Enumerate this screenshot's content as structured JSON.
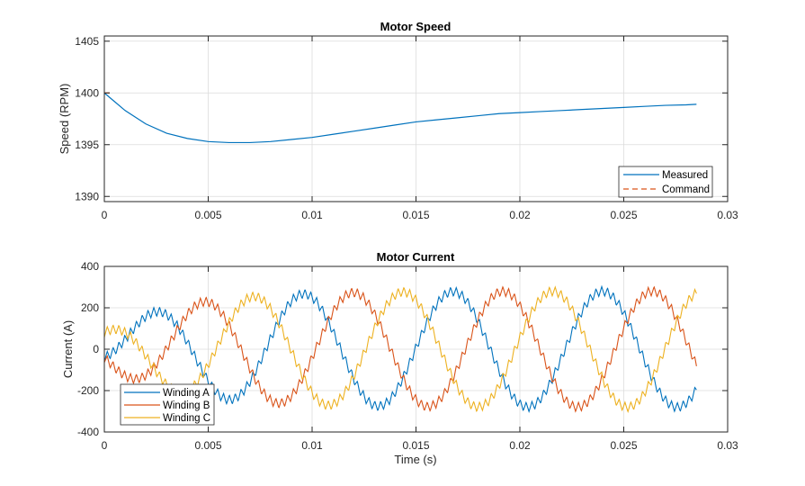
{
  "chart_data": [
    {
      "type": "line",
      "title": "Motor Speed",
      "xlabel": "",
      "ylabel": "Speed (RPM)",
      "xlim": [
        0,
        0.03
      ],
      "ylim": [
        1389.5,
        1405.5
      ],
      "xticks": [
        0,
        0.005,
        0.01,
        0.015,
        0.02,
        0.025,
        0.03
      ],
      "xtick_labels": [
        "0",
        "0.005",
        "0.01",
        "0.015",
        "0.02",
        "0.025",
        "0.03"
      ],
      "yticks": [
        1390,
        1395,
        1400,
        1405
      ],
      "ytick_labels": [
        "1390",
        "1395",
        "1400",
        "1405"
      ],
      "grid": true,
      "legend": {
        "position": "bottom-right",
        "entries": [
          "Measured",
          "Command"
        ]
      },
      "series": [
        {
          "name": "Measured",
          "color": "#0072BD",
          "style": "solid",
          "x": [
            0,
            0.001,
            0.002,
            0.003,
            0.004,
            0.005,
            0.006,
            0.007,
            0.008,
            0.009,
            0.01,
            0.011,
            0.012,
            0.013,
            0.014,
            0.015,
            0.016,
            0.017,
            0.018,
            0.019,
            0.02,
            0.021,
            0.022,
            0.023,
            0.024,
            0.025,
            0.026,
            0.027,
            0.028,
            0.0285
          ],
          "y": [
            1400,
            1398.3,
            1397.0,
            1396.1,
            1395.6,
            1395.3,
            1395.2,
            1395.2,
            1395.3,
            1395.5,
            1395.7,
            1396.0,
            1396.3,
            1396.6,
            1396.9,
            1397.2,
            1397.4,
            1397.6,
            1397.8,
            1398.0,
            1398.1,
            1398.2,
            1398.3,
            1398.4,
            1398.5,
            1398.6,
            1398.7,
            1398.8,
            1398.85,
            1398.9
          ]
        },
        {
          "name": "Command",
          "color": "#D95319",
          "style": "dashed",
          "x": [
            0,
            0.0003
          ],
          "y": [
            1400,
            1400
          ]
        }
      ]
    },
    {
      "type": "line",
      "title": "Motor Current",
      "xlabel": "Time (s)",
      "ylabel": "Current (A)",
      "xlim": [
        0,
        0.03
      ],
      "ylim": [
        -400,
        400
      ],
      "xticks": [
        0,
        0.005,
        0.01,
        0.015,
        0.02,
        0.025,
        0.03
      ],
      "xtick_labels": [
        "0",
        "0.005",
        "0.01",
        "0.015",
        "0.02",
        "0.025",
        "0.03"
      ],
      "yticks": [
        -400,
        -200,
        0,
        200,
        400
      ],
      "ytick_labels": [
        "-400",
        "-200",
        "0",
        "200",
        "400"
      ],
      "grid": true,
      "legend": {
        "position": "bottom-left",
        "entries": [
          "Winding A",
          "Winding B",
          "Winding C"
        ]
      },
      "waveform": {
        "description_units": "three-phase sinusoidal currents with PWM ripple",
        "t_end": 0.0285,
        "period": 0.0072,
        "amplitude_start": 80,
        "amplitude_steady": 280,
        "ripple_amplitude": 25,
        "ripple_period": 0.00028
      },
      "series": [
        {
          "name": "Winding A",
          "color": "#0072BD",
          "phase_deg": 0
        },
        {
          "name": "Winding B",
          "color": "#D95319",
          "phase_deg": -120
        },
        {
          "name": "Winding C",
          "color": "#EDB120",
          "phase_deg": 120
        }
      ]
    }
  ]
}
